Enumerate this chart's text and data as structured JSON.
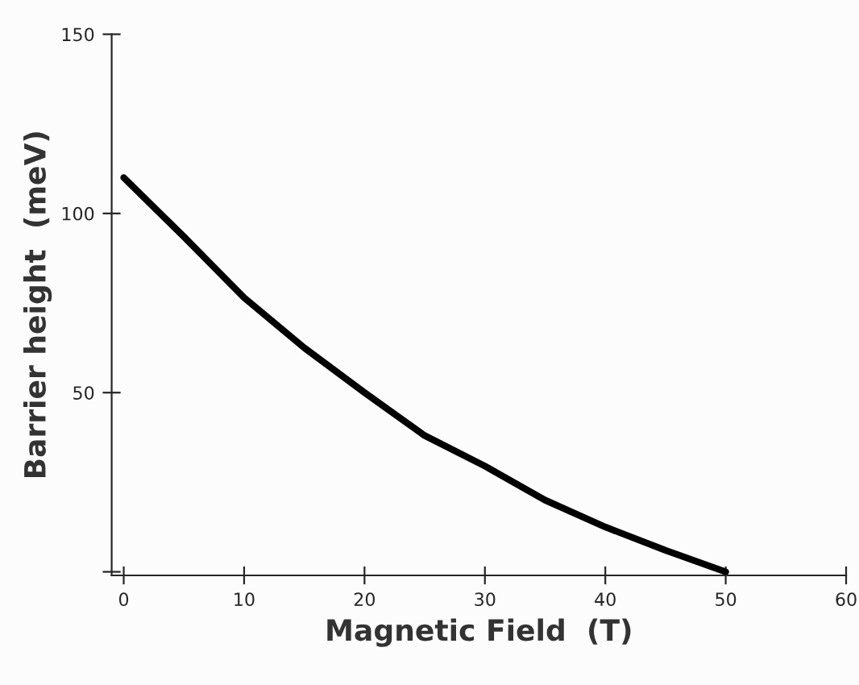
{
  "chart_data": {
    "type": "line",
    "xlabel": "Magnetic Field  (T)",
    "ylabel": "Barrier height  (meV)",
    "x": [
      0,
      5,
      10,
      15,
      20,
      25,
      30,
      35,
      40,
      45,
      50
    ],
    "series": [
      {
        "color": "#000000",
        "values": [
          110,
          93.5,
          76.5,
          62.5,
          50,
          38,
          29.5,
          20,
          12.5,
          6,
          0
        ]
      }
    ],
    "xlim": [
      -1,
      60
    ],
    "xticks": [
      0,
      10,
      20,
      30,
      40,
      50,
      60
    ],
    "ylim": [
      -1,
      150
    ],
    "yticks": [
      {
        "value": 0,
        "label": null
      },
      50,
      100,
      150
    ],
    "grid": false,
    "legend": false,
    "marker": "none",
    "line_style": "solid"
  }
}
